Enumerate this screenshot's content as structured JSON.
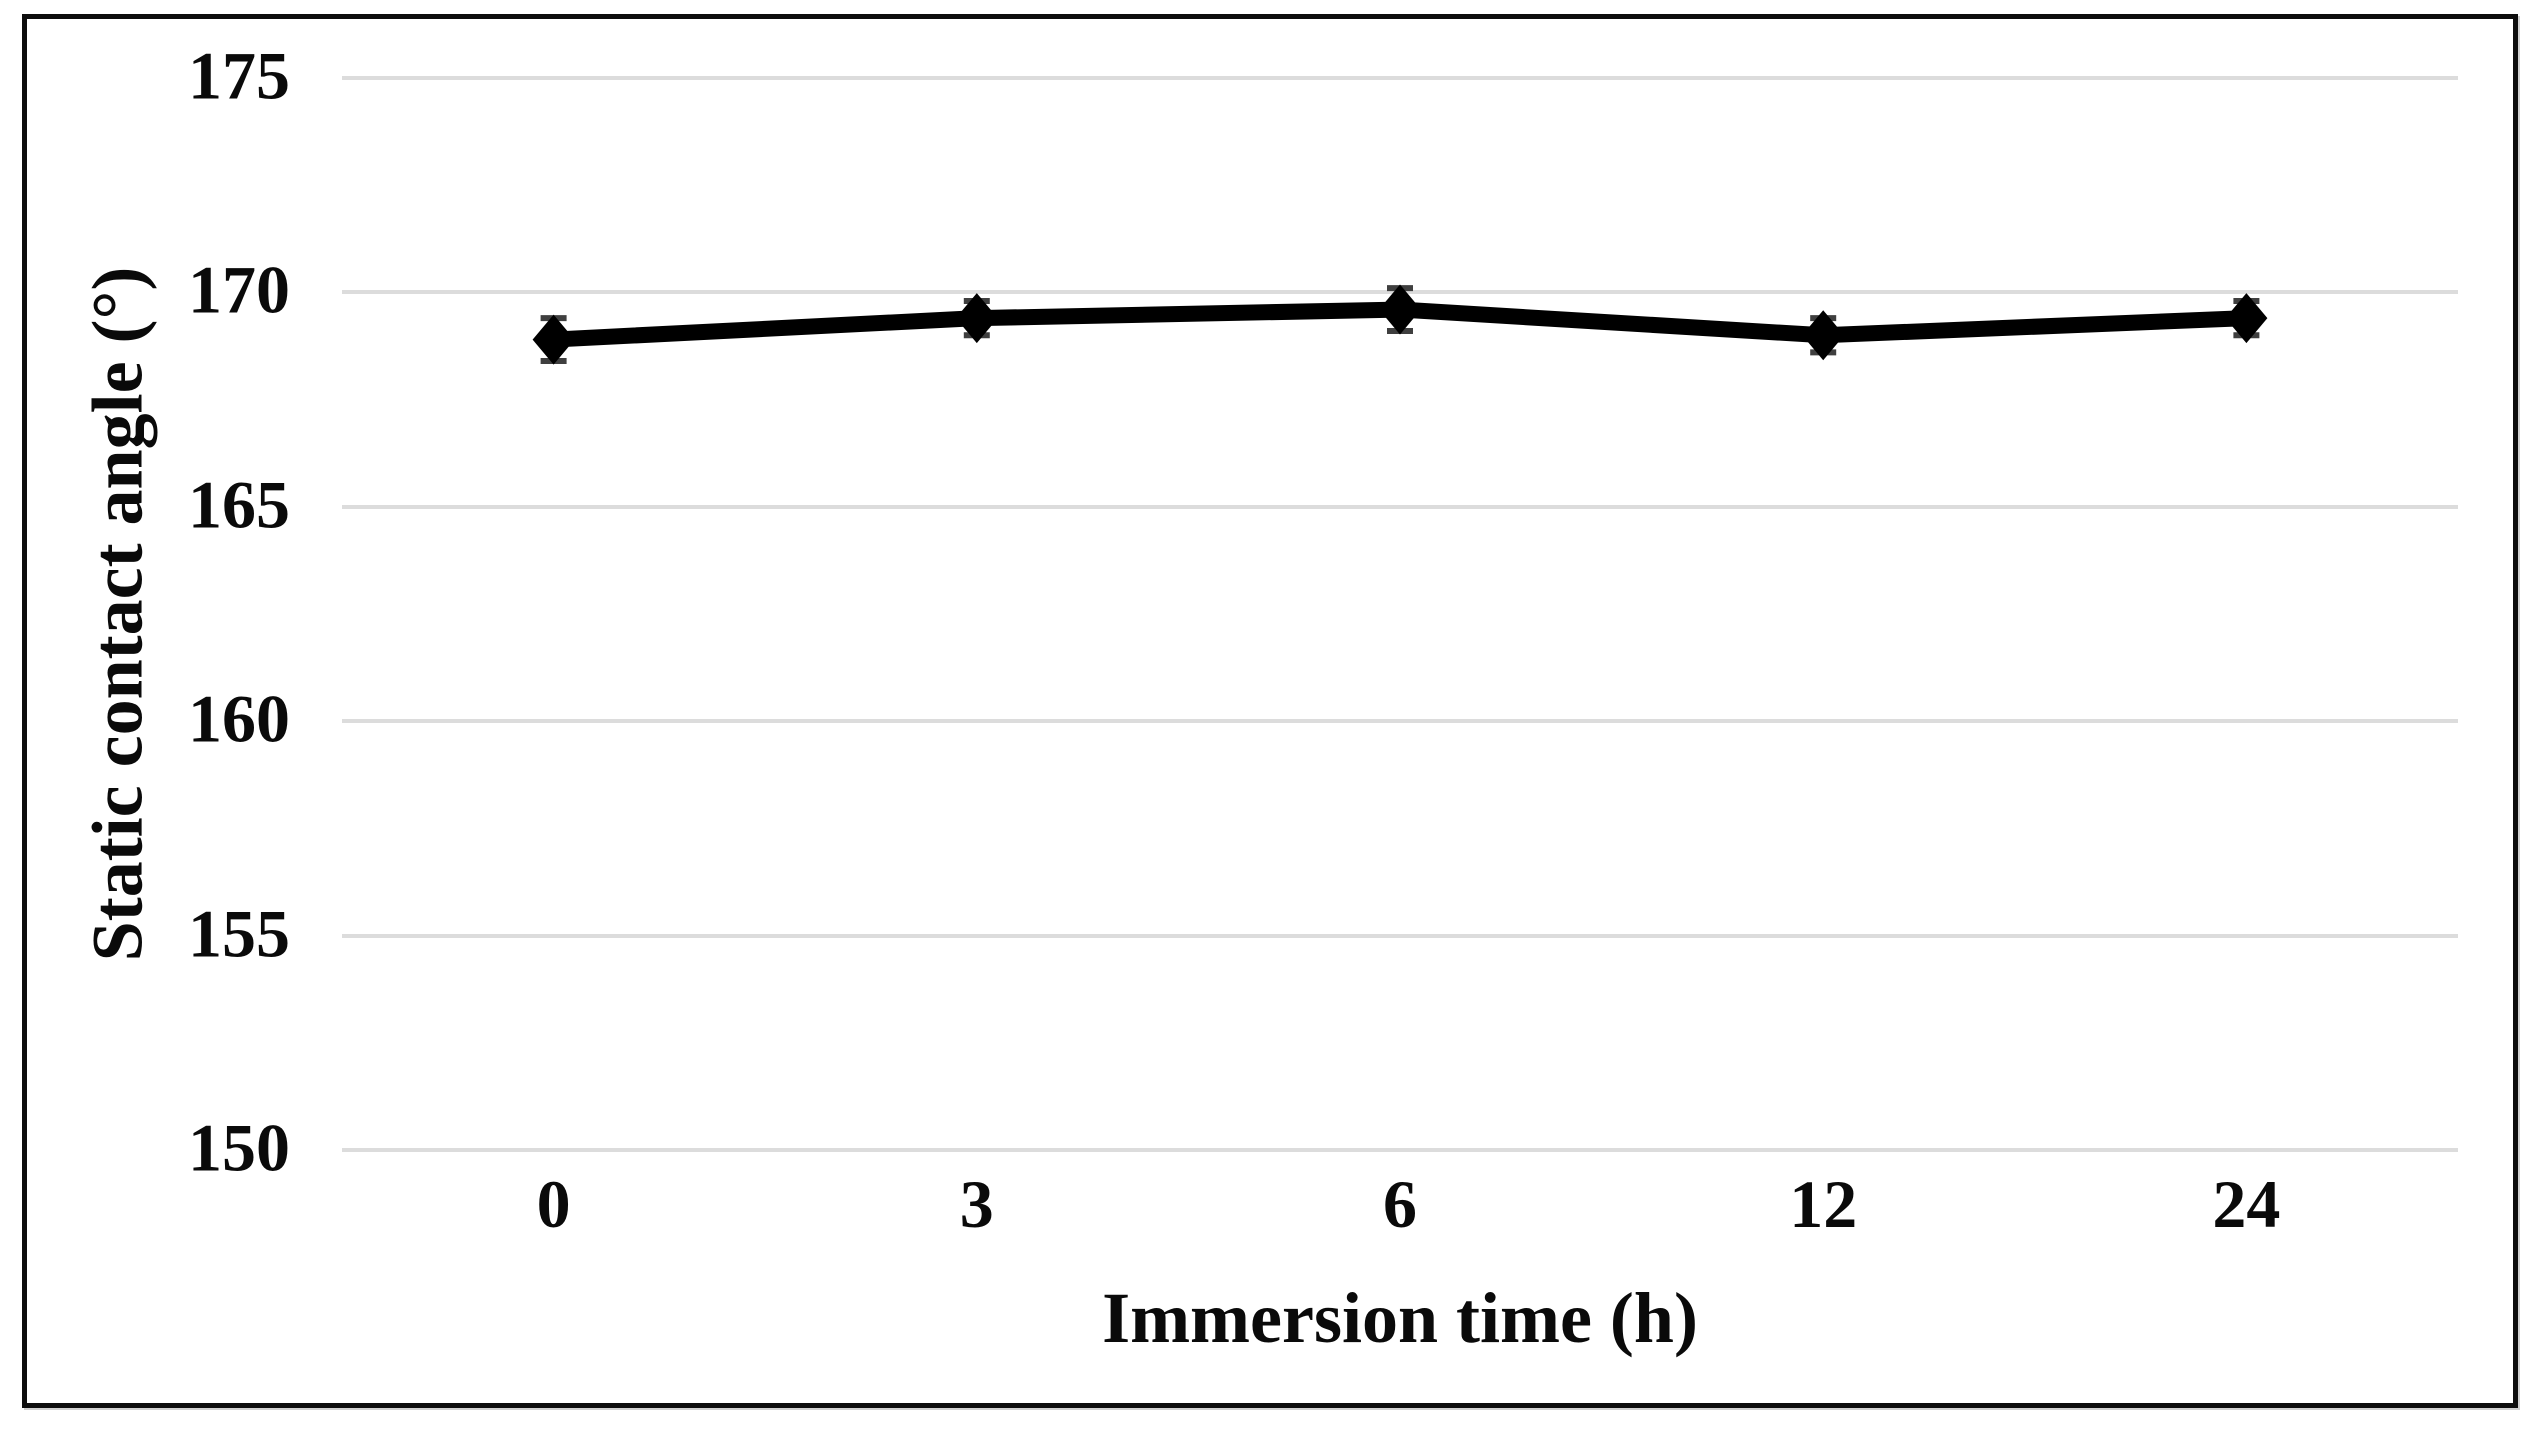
{
  "figure": {
    "background_color": "#ffffff",
    "frame_color": "#0d0d0d"
  },
  "chart_data": {
    "type": "line",
    "title": "",
    "xlabel": "Immersion time (h)",
    "ylabel": "Static contact angle (°)",
    "categories": [
      "0",
      "3",
      "6",
      "12",
      "24"
    ],
    "series": [
      {
        "name": "Static contact angle",
        "values": [
          168.9,
          169.4,
          169.6,
          169.0,
          169.4
        ],
        "error_bars": [
          0.5,
          0.4,
          0.5,
          0.4,
          0.4
        ],
        "color": "#000000",
        "marker": "diamond"
      }
    ],
    "yticks": [
      175,
      170,
      165,
      160,
      155,
      150
    ],
    "ylim": [
      150,
      175
    ],
    "xlim_note": "categorical axis, evenly spaced",
    "grid": "horizontal",
    "gridline_color": "#dcdcdc",
    "error_bar_color": "#3f3f3f",
    "legend_position": "none"
  }
}
